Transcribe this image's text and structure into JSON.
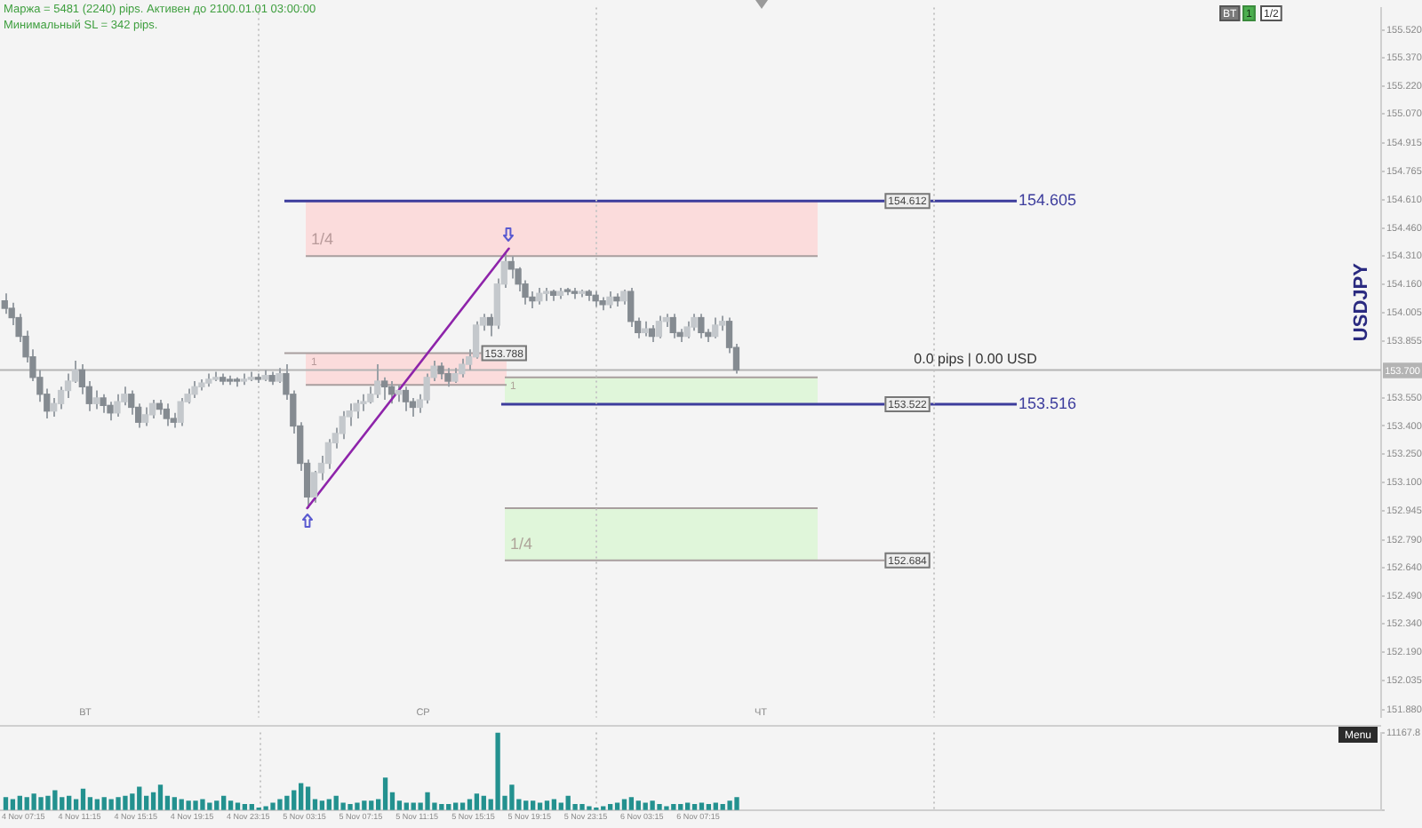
{
  "chart_data": [
    {
      "type": "candlestick",
      "title": "Маржа = 5481 (2240) pips. Активен до 2100.01.01 03:00:00",
      "subtitle": "Минимальный SL = 342 pips.",
      "ylabel": "USDJPY",
      "x": [
        "--11-04T06:00",
        "--11-04T06:30",
        "--11-04T07:00",
        "--11-04T07:30",
        "--11-04T08:00",
        "--11-04T08:30",
        "--11-04T09:00",
        "--11-04T09:30",
        "--11-04T10:00",
        "--11-04T10:30",
        "--11-04T11:00",
        "--11-04T11:30",
        "--11-04T12:00",
        "--11-04T12:30",
        "--11-04T13:00",
        "--11-04T13:30",
        "--11-04T14:00",
        "--11-04T14:30",
        "--11-04T15:00",
        "--11-04T15:30",
        "--11-04T16:00",
        "--11-04T16:30",
        "--11-04T17:00",
        "--11-04T17:30",
        "--11-04T18:00",
        "--11-04T18:30",
        "--11-04T19:00",
        "--11-04T19:30",
        "--11-04T20:00",
        "--11-04T20:30",
        "--11-04T21:00",
        "--11-04T21:30",
        "--11-04T22:00",
        "--11-04T22:30",
        "--11-04T23:00",
        "--11-04T23:30",
        "--11-05T00:00",
        "--11-05T00:30",
        "--11-05T01:00",
        "--11-05T01:30",
        "--11-05T02:00",
        "--11-05T02:30",
        "--11-05T03:00",
        "--11-05T03:30",
        "--11-05T04:00",
        "--11-05T04:30",
        "--11-05T05:00",
        "--11-05T05:30",
        "--11-05T06:00",
        "--11-05T06:30",
        "--11-05T07:00",
        "--11-05T07:30",
        "--11-05T08:00",
        "--11-05T08:30",
        "--11-05T09:00",
        "--11-05T09:30",
        "--11-05T10:00",
        "--11-05T10:30",
        "--11-05T11:00",
        "--11-05T11:30",
        "--11-05T12:00",
        "--11-05T12:30",
        "--11-05T13:00",
        "--11-05T13:30",
        "--11-05T14:00",
        "--11-05T14:30",
        "--11-05T15:00",
        "--11-05T15:30",
        "--11-05T16:00",
        "--11-05T16:30",
        "--11-05T17:00",
        "--11-05T17:30",
        "--11-05T18:00",
        "--11-05T18:30",
        "--11-05T19:00",
        "--11-05T19:30",
        "--11-05T20:00",
        "--11-05T20:30",
        "--11-05T21:00",
        "--11-05T21:30",
        "--11-05T22:00",
        "--11-05T22:30",
        "--11-05T23:00",
        "--11-05T23:30",
        "--11-06T00:00",
        "--11-06T00:30",
        "--11-06T01:00",
        "--11-06T01:30",
        "--11-06T02:00",
        "--11-06T02:30",
        "--11-06T03:00",
        "--11-06T03:30",
        "--11-06T04:00",
        "--11-06T04:30",
        "--11-06T05:00",
        "--11-06T05:30",
        "--11-06T06:00",
        "--11-06T06:30",
        "--11-06T07:00",
        "--11-06T07:30",
        "--11-06T08:00",
        "--11-06T08:30",
        "--11-06T09:00",
        "--11-06T09:30",
        "--11-06T10:00"
      ],
      "ohlc": [
        [
          154.07,
          154.11,
          154.0,
          154.03
        ],
        [
          154.03,
          154.06,
          153.94,
          153.98
        ],
        [
          153.98,
          154.0,
          153.85,
          153.88
        ],
        [
          153.88,
          153.91,
          153.74,
          153.77
        ],
        [
          153.77,
          153.81,
          153.64,
          153.66
        ],
        [
          153.66,
          153.7,
          153.53,
          153.57
        ],
        [
          153.57,
          153.6,
          153.44,
          153.48
        ],
        [
          153.48,
          153.55,
          153.45,
          153.52
        ],
        [
          153.52,
          153.61,
          153.49,
          153.59
        ],
        [
          153.59,
          153.68,
          153.55,
          153.64
        ],
        [
          153.64,
          153.75,
          153.63,
          153.7
        ],
        [
          153.7,
          153.73,
          153.57,
          153.61
        ],
        [
          153.61,
          153.64,
          153.48,
          153.52
        ],
        [
          153.52,
          153.59,
          153.49,
          153.55
        ],
        [
          153.55,
          153.57,
          153.47,
          153.51
        ],
        [
          153.51,
          153.53,
          153.43,
          153.47
        ],
        [
          153.47,
          153.57,
          153.45,
          153.53
        ],
        [
          153.53,
          153.61,
          153.51,
          153.57
        ],
        [
          153.57,
          153.59,
          153.46,
          153.5
        ],
        [
          153.5,
          153.52,
          153.39,
          153.42
        ],
        [
          153.42,
          153.5,
          153.4,
          153.46
        ],
        [
          153.46,
          153.54,
          153.44,
          153.52
        ],
        [
          153.52,
          153.54,
          153.46,
          153.49
        ],
        [
          153.49,
          153.52,
          153.4,
          153.44
        ],
        [
          153.44,
          153.47,
          153.39,
          153.42
        ],
        [
          153.42,
          153.55,
          153.4,
          153.53
        ],
        [
          153.53,
          153.6,
          153.52,
          153.57
        ],
        [
          153.57,
          153.64,
          153.55,
          153.61
        ],
        [
          153.61,
          153.65,
          153.59,
          153.63
        ],
        [
          153.63,
          153.68,
          153.61,
          153.65
        ],
        [
          153.65,
          153.69,
          153.64,
          153.66
        ],
        [
          153.66,
          153.68,
          153.62,
          153.64
        ],
        [
          153.64,
          153.67,
          153.62,
          153.64
        ],
        [
          153.64,
          153.66,
          153.61,
          153.64
        ],
        [
          153.64,
          153.68,
          153.62,
          153.65
        ],
        [
          153.65,
          153.69,
          153.64,
          153.66
        ],
        [
          153.66,
          153.68,
          153.63,
          153.65
        ],
        [
          153.65,
          153.7,
          153.64,
          153.67
        ],
        [
          153.67,
          153.69,
          153.62,
          153.64
        ],
        [
          153.64,
          153.71,
          153.63,
          153.68
        ],
        [
          153.68,
          153.73,
          153.54,
          153.57
        ],
        [
          153.57,
          153.59,
          153.36,
          153.4
        ],
        [
          153.4,
          153.42,
          153.16,
          153.2
        ],
        [
          153.2,
          153.22,
          152.96,
          153.02
        ],
        [
          153.02,
          153.16,
          152.99,
          153.15
        ],
        [
          153.15,
          153.24,
          153.11,
          153.2
        ],
        [
          153.2,
          153.33,
          153.17,
          153.31
        ],
        [
          153.31,
          153.39,
          153.28,
          153.36
        ],
        [
          153.36,
          153.48,
          153.33,
          153.45
        ],
        [
          153.45,
          153.52,
          153.4,
          153.48
        ],
        [
          153.48,
          153.54,
          153.44,
          153.52
        ],
        [
          153.52,
          153.57,
          153.48,
          153.53
        ],
        [
          153.53,
          153.61,
          153.52,
          153.57
        ],
        [
          153.57,
          153.73,
          153.55,
          153.64
        ],
        [
          153.64,
          153.66,
          153.54,
          153.61
        ],
        [
          153.61,
          153.64,
          153.52,
          153.57
        ],
        [
          153.57,
          153.62,
          153.53,
          153.59
        ],
        [
          153.59,
          153.61,
          153.48,
          153.53
        ],
        [
          153.53,
          153.55,
          153.45,
          153.5
        ],
        [
          153.5,
          153.57,
          153.47,
          153.54
        ],
        [
          153.54,
          153.68,
          153.52,
          153.66
        ],
        [
          153.66,
          153.75,
          153.64,
          153.72
        ],
        [
          153.72,
          153.74,
          153.65,
          153.68
        ],
        [
          153.68,
          153.71,
          153.61,
          153.64
        ],
        [
          153.64,
          153.71,
          153.63,
          153.68
        ],
        [
          153.68,
          153.76,
          153.66,
          153.73
        ],
        [
          153.73,
          153.81,
          153.7,
          153.77
        ],
        [
          153.77,
          153.96,
          153.76,
          153.94
        ],
        [
          153.94,
          154.0,
          153.91,
          153.98
        ],
        [
          153.98,
          154.0,
          153.88,
          153.94
        ],
        [
          153.94,
          154.19,
          153.92,
          154.16
        ],
        [
          154.16,
          154.33,
          154.14,
          154.28
        ],
        [
          154.28,
          154.31,
          154.19,
          154.24
        ],
        [
          154.24,
          154.25,
          154.12,
          154.16
        ],
        [
          154.16,
          154.18,
          154.05,
          154.09
        ],
        [
          154.09,
          154.12,
          154.03,
          154.07
        ],
        [
          154.07,
          154.14,
          154.05,
          154.11
        ],
        [
          154.11,
          154.14,
          154.07,
          154.12
        ],
        [
          154.12,
          154.13,
          154.07,
          154.1
        ],
        [
          154.1,
          154.14,
          154.08,
          154.12
        ],
        [
          154.12,
          154.14,
          154.1,
          154.12
        ],
        [
          154.12,
          154.14,
          154.08,
          154.11
        ],
        [
          154.11,
          154.13,
          154.09,
          154.12
        ],
        [
          154.12,
          154.13,
          154.07,
          154.1
        ],
        [
          154.1,
          154.12,
          154.04,
          154.07
        ],
        [
          154.07,
          154.09,
          154.02,
          154.05
        ],
        [
          154.05,
          154.12,
          154.03,
          154.09
        ],
        [
          154.09,
          154.11,
          154.04,
          154.07
        ],
        [
          154.07,
          154.13,
          154.05,
          154.12
        ],
        [
          154.12,
          154.14,
          153.93,
          153.96
        ],
        [
          153.96,
          153.98,
          153.87,
          153.9
        ],
        [
          153.9,
          153.96,
          153.88,
          153.92
        ],
        [
          153.92,
          153.94,
          153.85,
          153.88
        ],
        [
          153.88,
          153.99,
          153.87,
          153.96
        ],
        [
          153.96,
          154.0,
          153.93,
          153.98
        ],
        [
          153.98,
          154.0,
          153.87,
          153.9
        ],
        [
          153.9,
          153.92,
          153.85,
          153.88
        ],
        [
          153.88,
          153.96,
          153.87,
          153.93
        ],
        [
          153.93,
          154.0,
          153.91,
          153.98
        ],
        [
          153.98,
          154.0,
          153.87,
          153.9
        ],
        [
          153.9,
          153.92,
          153.85,
          153.88
        ],
        [
          153.88,
          153.98,
          153.87,
          153.94
        ],
        [
          153.94,
          153.99,
          153.91,
          153.96
        ],
        [
          153.96,
          153.98,
          153.79,
          153.82
        ],
        [
          153.82,
          153.84,
          153.68,
          153.7
        ]
      ],
      "color": "#9aa0a6",
      "colors": [
        "#858b91",
        "#858b91",
        "#858b91",
        "#858b91",
        "#858b91",
        "#858b91",
        "#858b91",
        "#c4c8cc",
        "#c4c8cc",
        "#c4c8cc",
        "#c4c8cc",
        "#858b91",
        "#858b91",
        "#c4c8cc",
        "#858b91",
        "#858b91",
        "#c4c8cc",
        "#c4c8cc",
        "#858b91",
        "#858b91",
        "#c4c8cc",
        "#c4c8cc",
        "#858b91",
        "#858b91",
        "#858b91",
        "#c4c8cc",
        "#c4c8cc",
        "#c4c8cc",
        "#c4c8cc",
        "#c4c8cc",
        "#c4c8cc",
        "#858b91",
        "#858b91",
        "#858b91",
        "#c4c8cc",
        "#c4c8cc",
        "#858b91",
        "#c4c8cc",
        "#858b91",
        "#c4c8cc",
        "#858b91",
        "#858b91",
        "#858b91",
        "#858b91",
        "#c4c8cc",
        "#c4c8cc",
        "#c4c8cc",
        "#c4c8cc",
        "#c4c8cc",
        "#c4c8cc",
        "#c4c8cc",
        "#c4c8cc",
        "#c4c8cc",
        "#c4c8cc",
        "#858b91",
        "#858b91",
        "#c4c8cc",
        "#858b91",
        "#858b91",
        "#c4c8cc",
        "#c4c8cc",
        "#c4c8cc",
        "#858b91",
        "#858b91",
        "#c4c8cc",
        "#c4c8cc",
        "#c4c8cc",
        "#c4c8cc",
        "#c4c8cc",
        "#858b91",
        "#c4c8cc",
        "#c4c8cc",
        "#858b91",
        "#858b91",
        "#858b91",
        "#858b91",
        "#c4c8cc",
        "#c4c8cc",
        "#858b91",
        "#c4c8cc",
        "#858b91",
        "#858b91",
        "#c4c8cc",
        "#858b91",
        "#858b91",
        "#858b91",
        "#c4c8cc",
        "#858b91",
        "#c4c8cc",
        "#858b91",
        "#858b91",
        "#c4c8cc",
        "#858b91",
        "#c4c8cc",
        "#c4c8cc",
        "#858b91",
        "#858b91",
        "#c4c8cc",
        "#c4c8cc",
        "#858b91",
        "#858b91",
        "#c4c8cc",
        "#c4c8cc",
        "#858b91",
        "#858b91"
      ],
      "series": [
        {
          "type": "line",
          "x": [
            "--11-05T03:30",
            "--11-05T17:50"
          ],
          "values": [
            152.96,
            154.35
          ],
          "color": "#8e24aa"
        }
      ],
      "xlim": [
        "--11-04T05:40",
        "--11-08T07:50"
      ],
      "tick_labels": "y",
      "ylim": [
        151.84,
        155.64
      ],
      "yticks": [
        {
          "value": 155.52,
          "label": "155.520"
        },
        {
          "value": 155.37,
          "label": "155.370"
        },
        {
          "value": 155.22,
          "label": "155.220"
        },
        {
          "value": 155.07,
          "label": "155.070"
        },
        {
          "value": 154.915,
          "label": "154.915"
        },
        {
          "value": 154.765,
          "label": "154.765"
        },
        {
          "value": 154.61,
          "label": "154.610"
        },
        {
          "value": 154.46,
          "label": "154.460"
        },
        {
          "value": 154.31,
          "label": "154.310"
        },
        {
          "value": 154.16,
          "label": "154.160"
        },
        {
          "value": 154.005,
          "label": "154.005"
        },
        {
          "value": 153.855,
          "label": "153.855"
        },
        {
          "value": 153.55,
          "label": "153.550"
        },
        {
          "value": 153.4,
          "label": "153.400"
        },
        {
          "value": 153.25,
          "label": "153.250"
        },
        {
          "value": 153.1,
          "label": "153.100"
        },
        {
          "value": 152.945,
          "label": "152.945"
        },
        {
          "value": 152.79,
          "label": "152.790"
        },
        {
          "value": 152.64,
          "label": "152.640"
        },
        {
          "value": 152.49,
          "label": "152.490"
        },
        {
          "value": 152.34,
          "label": "152.340"
        },
        {
          "value": 152.19,
          "label": "152.190"
        },
        {
          "value": 152.035,
          "label": "152.035"
        },
        {
          "value": 151.88,
          "label": "151.880"
        }
      ],
      "ref_lines": [
        {
          "axis": "y",
          "value": 154.605,
          "label": "154.605",
          "color": "#3c3c9c"
        },
        {
          "axis": "y",
          "value": 153.516,
          "label": "153.516",
          "color": "#3c3c9c"
        },
        {
          "axis": "y",
          "value": 153.7,
          "label": "153.700",
          "color": "#b4b4b4"
        },
        {
          "axis": "y",
          "value": 154.31,
          "color": "#a89e9e"
        },
        {
          "axis": "y",
          "value": 153.79,
          "color": "#a89e9e"
        },
        {
          "axis": "y",
          "value": 153.62,
          "color": "#a89e9e"
        },
        {
          "axis": "y",
          "value": 153.66,
          "color": "#a89e9e"
        },
        {
          "axis": "y",
          "value": 152.96,
          "color": "#a89e9e"
        },
        {
          "axis": "y",
          "value": 152.68,
          "color": "#a89e9e"
        },
        {
          "axis": "x",
          "value": "--11-05T00:00",
          "line_style": "dotted",
          "color": "#c4c4c4"
        },
        {
          "axis": "x",
          "value": "--11-06T00:00",
          "line_style": "dotted",
          "color": "#c4c4c4"
        },
        {
          "axis": "x",
          "value": "--11-07T00:00",
          "line_style": "dotted",
          "color": "#c4c4c4"
        }
      ],
      "bands": [
        {
          "axis": "y",
          "from": 154.31,
          "to": 154.605,
          "label": "1/4",
          "color": "#fbdcdc"
        },
        {
          "axis": "y",
          "from": 153.62,
          "to": 153.79,
          "label": "1",
          "color": "#fbdcdc"
        },
        {
          "axis": "y",
          "from": 153.516,
          "to": 153.66,
          "label": "1",
          "color": "#e0f6da"
        },
        {
          "axis": "y",
          "from": 152.68,
          "to": 152.96,
          "label": "1/4",
          "color": "#e0f6da"
        }
      ],
      "annotations": [
        {
          "text": "0.0 pips | 0.00 USD",
          "x": "--11-07T03:00",
          "y": 153.7
        },
        {
          "text": "153.788",
          "x": "--11-05T17:30",
          "y": 153.79
        },
        {
          "text": "154.612",
          "x": "--11-06T22:10",
          "y": 154.605
        },
        {
          "text": "153.522",
          "x": "--11-06T22:10",
          "y": 153.516
        },
        {
          "text": "152.684",
          "x": "--11-06T22:10",
          "y": 152.68
        },
        "ВТ",
        "СР",
        "ЧТ",
        "BT",
        "1",
        "1/2"
      ]
    },
    {
      "type": "bar",
      "x": [
        "--11-04T06:00",
        "--11-04T06:30",
        "--11-04T07:00",
        "--11-04T07:30",
        "--11-04T08:00",
        "--11-04T08:30",
        "--11-04T09:00",
        "--11-04T09:30",
        "--11-04T10:00",
        "--11-04T10:30",
        "--11-04T11:00",
        "--11-04T11:30",
        "--11-04T12:00",
        "--11-04T12:30",
        "--11-04T13:00",
        "--11-04T13:30",
        "--11-04T14:00",
        "--11-04T14:30",
        "--11-04T15:00",
        "--11-04T15:30",
        "--11-04T16:00",
        "--11-04T16:30",
        "--11-04T17:00",
        "--11-04T17:30",
        "--11-04T18:00",
        "--11-04T18:30",
        "--11-04T19:00",
        "--11-04T19:30",
        "--11-04T20:00",
        "--11-04T20:30",
        "--11-04T21:00",
        "--11-04T21:30",
        "--11-04T22:00",
        "--11-04T22:30",
        "--11-04T23:00",
        "--11-04T23:30",
        "--11-05T00:00",
        "--11-05T00:30",
        "--11-05T01:00",
        "--11-05T01:30",
        "--11-05T02:00",
        "--11-05T02:30",
        "--11-05T03:00",
        "--11-05T03:30",
        "--11-05T04:00",
        "--11-05T04:30",
        "--11-05T05:00",
        "--11-05T05:30",
        "--11-05T06:00",
        "--11-05T06:30",
        "--11-05T07:00",
        "--11-05T07:30",
        "--11-05T08:00",
        "--11-05T08:30",
        "--11-05T09:00",
        "--11-05T09:30",
        "--11-05T10:00",
        "--11-05T10:30",
        "--11-05T11:00",
        "--11-05T11:30",
        "--11-05T12:00",
        "--11-05T12:30",
        "--11-05T13:00",
        "--11-05T13:30",
        "--11-05T14:00",
        "--11-05T14:30",
        "--11-05T15:00",
        "--11-05T15:30",
        "--11-05T16:00",
        "--11-05T16:30",
        "--11-05T17:00",
        "--11-05T17:30",
        "--11-05T18:00",
        "--11-05T18:30",
        "--11-05T19:00",
        "--11-05T19:30",
        "--11-05T20:00",
        "--11-05T20:30",
        "--11-05T21:00",
        "--11-05T21:30",
        "--11-05T22:00",
        "--11-05T22:30",
        "--11-05T23:00",
        "--11-05T23:30",
        "--11-06T00:00",
        "--11-06T00:30",
        "--11-06T01:00",
        "--11-06T01:30",
        "--11-06T02:00",
        "--11-06T02:30",
        "--11-06T03:00",
        "--11-06T03:30",
        "--11-06T04:00",
        "--11-06T04:30",
        "--11-06T05:00",
        "--11-06T05:30",
        "--11-06T06:00",
        "--11-06T06:30",
        "--11-06T07:00",
        "--11-06T07:30",
        "--11-06T08:00",
        "--11-06T08:30",
        "--11-06T09:00",
        "--11-06T09:30",
        "--11-06T10:00"
      ],
      "values": [
        1800,
        1500,
        2000,
        1800,
        2300,
        1800,
        2000,
        2800,
        1800,
        2000,
        1500,
        3000,
        1800,
        1500,
        1800,
        1500,
        1800,
        2000,
        2300,
        3300,
        2000,
        2500,
        3600,
        2000,
        1800,
        1500,
        1300,
        1300,
        1500,
        1000,
        1300,
        2000,
        1300,
        1000,
        800,
        800,
        300,
        500,
        1000,
        1500,
        2000,
        2800,
        3800,
        3300,
        1500,
        1300,
        1500,
        2000,
        1000,
        800,
        1000,
        1300,
        1300,
        1500,
        4600,
        2500,
        1300,
        1000,
        1000,
        1000,
        2500,
        1000,
        800,
        800,
        1000,
        1000,
        1500,
        2300,
        2000,
        1500,
        11100,
        2000,
        3600,
        1500,
        1300,
        1300,
        1000,
        1300,
        1500,
        1000,
        2000,
        800,
        800,
        500,
        300,
        500,
        800,
        1000,
        1500,
        1800,
        1300,
        1000,
        1300,
        800,
        500,
        800,
        800,
        1000,
        800,
        1000,
        800,
        1000,
        800,
        1300,
        1800
      ],
      "color": "#23918f",
      "xlim": [
        "--11-04T05:40",
        "--11-08T07:50"
      ],
      "xticks": [
        {
          "value": "--11-04T07:15",
          "label": "4 Nov 07:15"
        },
        {
          "value": "--11-04T11:15",
          "label": "4 Nov 11:15"
        },
        {
          "value": "--11-04T15:15",
          "label": "4 Nov 15:15"
        },
        {
          "value": "--11-04T19:15",
          "label": "4 Nov 19:15"
        },
        {
          "value": "--11-04T23:15",
          "label": "4 Nov 23:15"
        },
        {
          "value": "--11-05T03:15",
          "label": "5 Nov 03:15"
        },
        {
          "value": "--11-05T07:15",
          "label": "5 Nov 07:15"
        },
        {
          "value": "--11-05T11:15",
          "label": "5 Nov 11:15"
        },
        {
          "value": "--11-05T15:15",
          "label": "5 Nov 15:15"
        },
        {
          "value": "--11-05T19:15",
          "label": "5 Nov 19:15"
        },
        {
          "value": "--11-05T23:15",
          "label": "5 Nov 23:15"
        },
        {
          "value": "--11-06T03:15",
          "label": "6 Nov 03:15"
        },
        {
          "value": "--11-06T07:15",
          "label": "6 Nov 07:15"
        }
      ],
      "ylim": [
        0,
        11167.8
      ],
      "yticks": [
        0,
        11167.8
      ],
      "ref_lines": [
        {
          "axis": "x",
          "value": "--11-05T00:00",
          "line_style": "dotted",
          "color": "#c4c4c4"
        },
        {
          "axis": "x",
          "value": "--11-06T00:00",
          "line_style": "dotted",
          "color": "#c4c4c4"
        },
        {
          "axis": "x",
          "value": "--11-07T00:00",
          "line_style": "dotted",
          "color": "#c4c4c4"
        }
      ],
      "annotations": [
        "Menu"
      ]
    }
  ]
}
